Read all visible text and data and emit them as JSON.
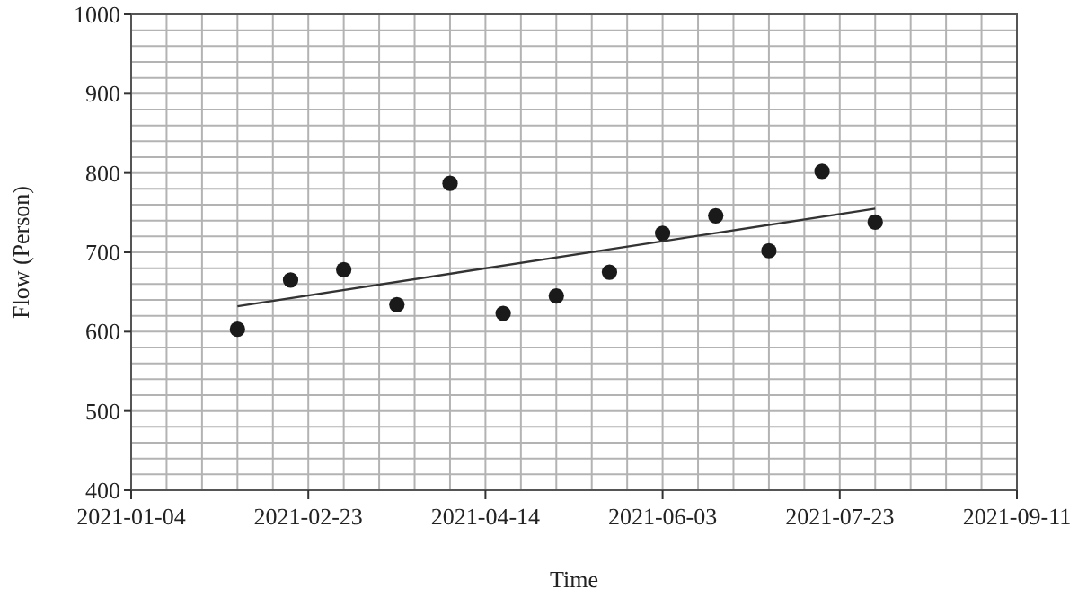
{
  "chart_data": {
    "type": "scatter",
    "xlabel": "Time",
    "ylabel": "Flow (Person)",
    "x": [
      "2021-02-03",
      "2021-02-18",
      "2021-03-05",
      "2021-03-20",
      "2021-04-04",
      "2021-04-19",
      "2021-05-04",
      "2021-05-19",
      "2021-06-03",
      "2021-06-18",
      "2021-07-03",
      "2021-07-18",
      "2021-08-02"
    ],
    "series": [
      {
        "color": "#1a1a1a",
        "marker": "circle",
        "values": [
          603,
          665,
          678,
          634,
          787,
          623,
          645,
          675,
          724,
          746,
          702,
          802,
          738
        ]
      },
      {
        "type": "line",
        "color": "#333333",
        "marker": "none",
        "line_style": "solid",
        "x": [
          "2021-02-03",
          "2021-08-02"
        ],
        "values": [
          632,
          755
        ]
      }
    ],
    "xlim": [
      "2021-01-04",
      "2021-09-11"
    ],
    "xticks": [
      {
        "value": "2021-01-04",
        "label": "2021-01-04"
      },
      {
        "value": "2021-01-14",
        "label": null
      },
      {
        "value": "2021-01-24",
        "label": null
      },
      {
        "value": "2021-02-03",
        "label": null
      },
      {
        "value": "2021-02-13",
        "label": null
      },
      {
        "value": "2021-02-23",
        "label": "2021-02-23"
      },
      {
        "value": "2021-03-05",
        "label": null
      },
      {
        "value": "2021-03-15",
        "label": null
      },
      {
        "value": "2021-03-25",
        "label": null
      },
      {
        "value": "2021-04-04",
        "label": null
      },
      {
        "value": "2021-04-14",
        "label": "2021-04-14"
      },
      {
        "value": "2021-04-24",
        "label": null
      },
      {
        "value": "2021-05-04",
        "label": null
      },
      {
        "value": "2021-05-14",
        "label": null
      },
      {
        "value": "2021-05-24",
        "label": null
      },
      {
        "value": "2021-06-03",
        "label": "2021-06-03"
      },
      {
        "value": "2021-06-13",
        "label": null
      },
      {
        "value": "2021-06-23",
        "label": null
      },
      {
        "value": "2021-07-03",
        "label": null
      },
      {
        "value": "2021-07-13",
        "label": null
      },
      {
        "value": "2021-07-23",
        "label": "2021-07-23"
      },
      {
        "value": "2021-08-02",
        "label": null
      },
      {
        "value": "2021-08-12",
        "label": null
      },
      {
        "value": "2021-08-22",
        "label": null
      },
      {
        "value": "2021-09-01",
        "label": null
      },
      {
        "value": "2021-09-11",
        "label": "2021-09-11"
      }
    ],
    "ylim": [
      400,
      1000
    ],
    "yticks": [
      400,
      {
        "value": 420,
        "label": null
      },
      {
        "value": 440,
        "label": null
      },
      {
        "value": 460,
        "label": null
      },
      {
        "value": 480,
        "label": null
      },
      500,
      {
        "value": 520,
        "label": null
      },
      {
        "value": 540,
        "label": null
      },
      {
        "value": 560,
        "label": null
      },
      {
        "value": 580,
        "label": null
      },
      600,
      {
        "value": 620,
        "label": null
      },
      {
        "value": 640,
        "label": null
      },
      {
        "value": 660,
        "label": null
      },
      {
        "value": 680,
        "label": null
      },
      700,
      {
        "value": 720,
        "label": null
      },
      {
        "value": 740,
        "label": null
      },
      {
        "value": 760,
        "label": null
      },
      {
        "value": 780,
        "label": null
      },
      800,
      {
        "value": 820,
        "label": null
      },
      {
        "value": 840,
        "label": null
      },
      {
        "value": 860,
        "label": null
      },
      {
        "value": 880,
        "label": null
      },
      900,
      {
        "value": 920,
        "label": null
      },
      {
        "value": 940,
        "label": null
      },
      {
        "value": 960,
        "label": null
      },
      {
        "value": 980,
        "label": null
      },
      1000
    ],
    "grid": true
  }
}
